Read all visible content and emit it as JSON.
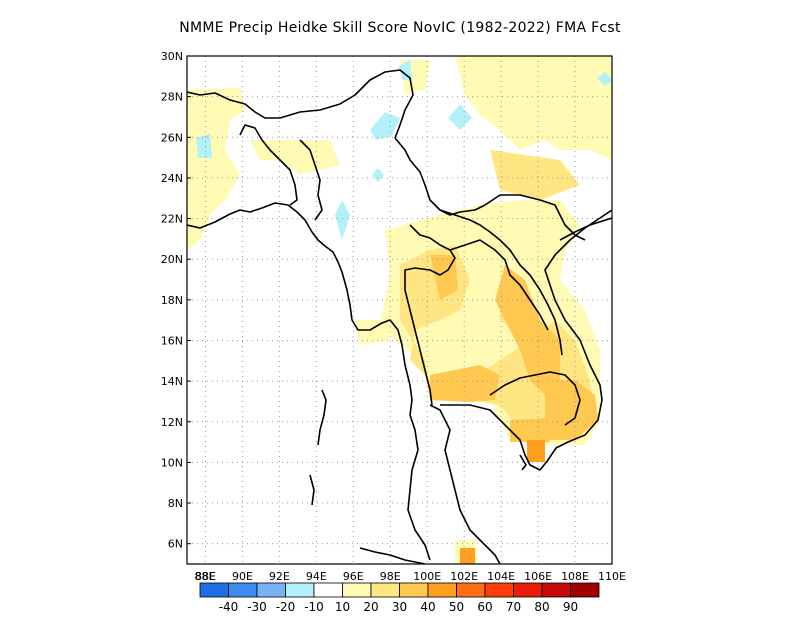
{
  "title": "NMME Precip Heidke Skill Score NovIC (1982-2022) FMA Fcst",
  "map": {
    "lon_range": [
      87,
      110
    ],
    "lat_range": [
      5,
      30
    ],
    "lon_ticks": [
      "88E",
      "88E",
      "90E",
      "92E",
      "94E",
      "96E",
      "98E",
      "100E",
      "102E",
      "104E",
      "106E",
      "108E",
      "110E"
    ],
    "lat_ticks": [
      "6N",
      "8N",
      "10N",
      "12N",
      "14N",
      "16N",
      "18N",
      "20N",
      "22N",
      "24N",
      "26N",
      "28N",
      "30N"
    ],
    "gridlines": "dotted"
  },
  "colorbar": {
    "labels": [
      "-40",
      "-30",
      "-20",
      "-10",
      "10",
      "20",
      "30",
      "40",
      "50",
      "60",
      "70",
      "80",
      "90"
    ],
    "colors": [
      "#1e6ee6",
      "#3c8cf0",
      "#78b4f5",
      "#b4f0fa",
      "#ffffff",
      "#fffab4",
      "#ffe682",
      "#ffc850",
      "#ffa01e",
      "#ff6e14",
      "#ff3c0a",
      "#e61e0a",
      "#c80a0a",
      "#a00000"
    ]
  },
  "palette": {
    "light_yellow": "#fffab4",
    "yellow": "#ffe682",
    "orange": "#ffc850",
    "deep_orange": "#ffa01e",
    "light_blue": "#b4f0fa",
    "coast": "#000000"
  }
}
